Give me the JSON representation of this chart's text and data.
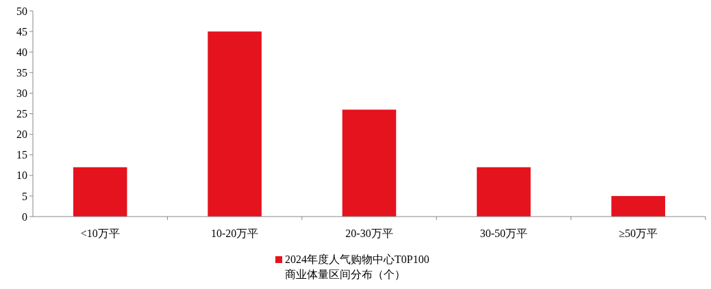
{
  "chart_data": {
    "type": "bar",
    "categories": [
      "<10万平",
      "10-20万平",
      "20-30万平",
      "30-50万平",
      "≥50万平"
    ],
    "series": [
      {
        "name": "2024年度人气购物中心T0P100\n商业体量区间分布（个）",
        "color": "#e5131d",
        "values": [
          12,
          45,
          26,
          12,
          5
        ]
      }
    ],
    "ylim": [
      0,
      50
    ],
    "yticks": [
      0,
      5,
      10,
      15,
      20,
      25,
      30,
      35,
      40,
      45,
      50
    ],
    "grid": false,
    "legend": "bottom"
  }
}
